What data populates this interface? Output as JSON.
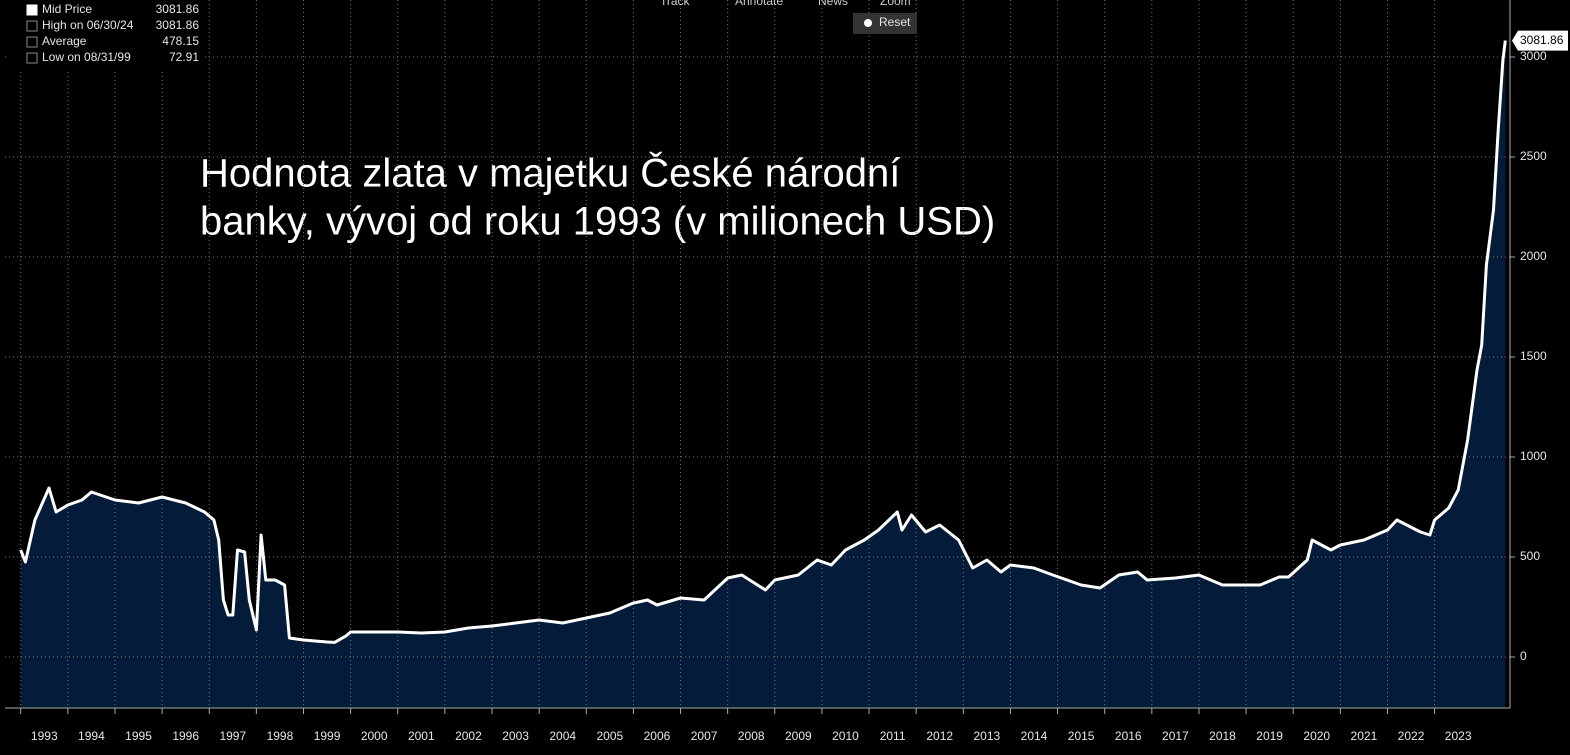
{
  "chart_data": {
    "type": "area",
    "title": [
      "Hodnota zlata v majetku České národní",
      "banky, vývoj od roku 1993 (v milionech USD)"
    ],
    "toolbar": [
      "Track",
      "Annotate",
      "News",
      "Zoom",
      "Reset"
    ],
    "legend": [
      {
        "label": "Mid Price",
        "value": 3081.86
      },
      {
        "label": "High on 06/30/24",
        "value": 3081.86
      },
      {
        "label": "Average",
        "value": 478.15
      },
      {
        "label": "Low on 08/31/99",
        "value": 72.91
      }
    ],
    "series": [
      {
        "name": "Mid Price",
        "color": "#ffffff",
        "fill": "#041c3a",
        "x": [
          1993.0,
          1993.1,
          1993.3,
          1993.6,
          1993.75,
          1994.0,
          1994.3,
          1994.5,
          1995.0,
          1995.5,
          1996.0,
          1996.5,
          1996.9,
          1997.1,
          1997.2,
          1997.3,
          1997.4,
          1997.5,
          1997.6,
          1997.75,
          1997.85,
          1998.0,
          1998.1,
          1998.2,
          1998.4,
          1998.6,
          1998.7,
          1999.0,
          1999.5,
          1999.66,
          1999.9,
          2000.0,
          2001.0,
          2001.5,
          2002.0,
          2002.5,
          2003.0,
          2003.5,
          2004.0,
          2004.5,
          2005.0,
          2005.5,
          2006.0,
          2006.3,
          2006.5,
          2007.0,
          2007.5,
          2008.0,
          2008.3,
          2008.8,
          2009.0,
          2009.5,
          2009.9,
          2010.2,
          2010.5,
          2010.9,
          2011.2,
          2011.6,
          2011.7,
          2011.9,
          2012.2,
          2012.5,
          2012.9,
          2013.2,
          2013.5,
          2013.8,
          2014.0,
          2014.5,
          2014.9,
          2015.2,
          2015.5,
          2015.9,
          2016.3,
          2016.7,
          2016.9,
          2017.5,
          2018.0,
          2018.5,
          2018.9,
          2019.3,
          2019.7,
          2019.9,
          2020.3,
          2020.4,
          2020.8,
          2021.0,
          2021.5,
          2022.0,
          2022.2,
          2022.7,
          2022.9,
          2023.0,
          2023.3,
          2023.5,
          2023.7,
          2023.9,
          2024.0,
          2024.1,
          2024.25,
          2024.35,
          2024.45,
          2024.5
        ],
        "values": [
          535,
          475,
          685,
          845,
          725,
          760,
          785,
          825,
          785,
          770,
          800,
          770,
          725,
          685,
          585,
          285,
          210,
          210,
          535,
          525,
          285,
          135,
          610,
          385,
          385,
          360,
          95,
          85,
          75,
          72.91,
          105,
          125,
          125,
          120,
          125,
          145,
          155,
          170,
          185,
          170,
          195,
          220,
          270,
          285,
          260,
          295,
          285,
          395,
          410,
          335,
          385,
          410,
          485,
          460,
          535,
          585,
          635,
          725,
          635,
          710,
          625,
          660,
          585,
          445,
          485,
          425,
          460,
          445,
          410,
          385,
          360,
          345,
          410,
          425,
          385,
          395,
          410,
          360,
          360,
          360,
          400,
          400,
          485,
          585,
          535,
          560,
          585,
          635,
          685,
          625,
          610,
          685,
          745,
          835,
          1085,
          1435,
          1560,
          1960,
          2235,
          2635,
          2985,
          3081.86
        ]
      }
    ],
    "xlim": [
      1992.9,
      2024.6
    ],
    "xticks": [
      1993,
      1994,
      1995,
      1996,
      1997,
      1998,
      1999,
      2000,
      2001,
      2002,
      2003,
      2004,
      2005,
      2006,
      2007,
      2008,
      2009,
      2010,
      2011,
      2012,
      2013,
      2014,
      2015,
      2016,
      2017,
      2018,
      2019,
      2020,
      2021,
      2022,
      2023
    ],
    "ylim": [
      -255,
      3285
    ],
    "yticks": [
      0,
      500,
      1000,
      1500,
      2000,
      2500,
      3000
    ],
    "grid": true
  }
}
